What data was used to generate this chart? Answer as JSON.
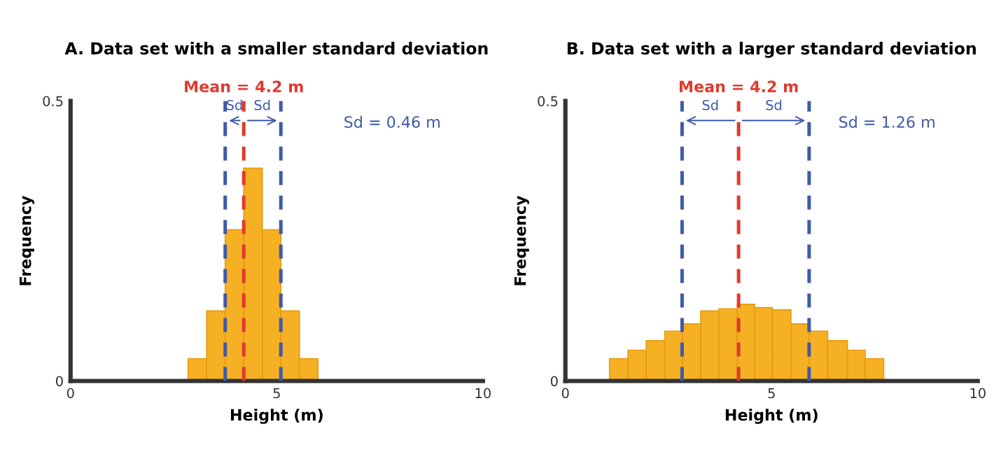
{
  "chart_data": [
    {
      "type": "histogram",
      "title": "A. Data set with a smaller standard deviation",
      "xlabel": "Height (m)",
      "ylabel": "Frequency",
      "bins": [
        2.85,
        3.3,
        3.75,
        4.2,
        4.65,
        5.1,
        5.55,
        6.0
      ],
      "values": [
        0.04,
        0.125,
        0.27,
        0.38,
        0.27,
        0.125,
        0.04
      ],
      "color": "#f6b024",
      "xlim": [
        0,
        10
      ],
      "xticks": [
        0,
        5,
        10
      ],
      "ylim": [
        0,
        0.5
      ],
      "yticks": [
        0,
        0.5
      ],
      "grid": false,
      "ref_lines": [
        {
          "axis": "x",
          "value": 4.2,
          "label": "Mean = 4.2 m",
          "color": "#e03a2f",
          "line_style": "dashed"
        },
        {
          "axis": "x",
          "value": 3.75,
          "color": "#3f5aa8",
          "line_style": "dashed"
        },
        {
          "axis": "x",
          "value": 5.1,
          "color": "#3f5aa8",
          "line_style": "dashed"
        }
      ],
      "annotations": [
        {
          "text": "Sd",
          "x": 3.75,
          "y": 0.465
        },
        {
          "text": "Sd",
          "x": 5.1,
          "y": 0.465
        },
        "Sd = 0.46 m"
      ]
    },
    {
      "type": "histogram",
      "title": "B. Data set with a larger standard deviation",
      "xlabel": "Height (m)",
      "ylabel": "Frequency",
      "bins": [
        1.07,
        1.52,
        1.96,
        2.41,
        2.84,
        3.28,
        3.72,
        4.17,
        4.59,
        5.02,
        5.47,
        5.91,
        6.36,
        6.84,
        7.27,
        7.72
      ],
      "values": [
        0.04,
        0.055,
        0.072,
        0.089,
        0.102,
        0.125,
        0.129,
        0.137,
        0.131,
        0.127,
        0.102,
        0.089,
        0.072,
        0.055,
        0.04
      ],
      "color": "#f6b024",
      "xlim": [
        0,
        10
      ],
      "xticks": [
        0,
        5,
        10
      ],
      "ylim": [
        0,
        0.5
      ],
      "yticks": [
        0,
        0.5
      ],
      "grid": false,
      "ref_lines": [
        {
          "axis": "x",
          "value": 4.2,
          "label": "Mean = 4.2 m",
          "color": "#e03a2f",
          "line_style": "dashed"
        },
        {
          "axis": "x",
          "value": 2.83,
          "color": "#3f5aa8",
          "line_style": "dashed"
        },
        {
          "axis": "x",
          "value": 5.91,
          "color": "#3f5aa8",
          "line_style": "dashed"
        }
      ],
      "annotations": [
        {
          "text": "Sd",
          "x": 2.83,
          "y": 0.465
        },
        {
          "text": "Sd",
          "x": 5.91,
          "y": 0.465
        },
        "Sd = 1.26 m"
      ]
    }
  ]
}
